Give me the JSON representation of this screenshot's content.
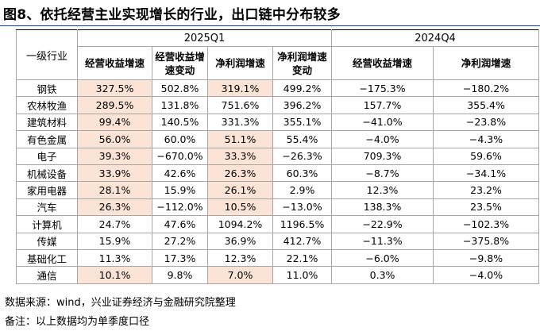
{
  "title": "图8、依托经营主业实现增长的行业，出口链中分布较多",
  "table": {
    "row_header": "一级行业",
    "groups": [
      "2025Q1",
      "2024Q4"
    ],
    "columns": [
      "经营收益增速",
      "经营收益增速变动",
      "净利润增速",
      "净利润增速变动",
      "经营收益增速",
      "净利润增速"
    ],
    "highlight_color": "#fbe3d6",
    "rows": [
      {
        "industry": "钢铁",
        "values": [
          "327.5%",
          "502.8%",
          "319.1%",
          "499.2%",
          "−175.3%",
          "−180.2%"
        ],
        "highlight": [
          true,
          false,
          true,
          false,
          false,
          false
        ]
      },
      {
        "industry": "农林牧渔",
        "values": [
          "289.5%",
          "131.8%",
          "751.6%",
          "396.2%",
          "157.7%",
          "355.4%"
        ],
        "highlight": [
          true,
          false,
          false,
          false,
          false,
          false
        ]
      },
      {
        "industry": "建筑材料",
        "values": [
          "99.4%",
          "140.5%",
          "331.3%",
          "355.1%",
          "−41.0%",
          "−23.8%"
        ],
        "highlight": [
          true,
          false,
          false,
          false,
          false,
          false
        ]
      },
      {
        "industry": "有色金属",
        "values": [
          "56.0%",
          "60.0%",
          "51.1%",
          "55.4%",
          "−4.0%",
          "−4.3%"
        ],
        "highlight": [
          true,
          false,
          true,
          false,
          false,
          false
        ]
      },
      {
        "industry": "电子",
        "values": [
          "39.3%",
          "−670.0%",
          "33.3%",
          "−26.3%",
          "709.3%",
          "59.6%"
        ],
        "highlight": [
          true,
          false,
          true,
          false,
          false,
          false
        ]
      },
      {
        "industry": "机械设备",
        "values": [
          "33.9%",
          "42.6%",
          "26.3%",
          "60.3%",
          "−8.7%",
          "−34.1%"
        ],
        "highlight": [
          true,
          false,
          true,
          false,
          false,
          false
        ]
      },
      {
        "industry": "家用电器",
        "values": [
          "28.1%",
          "15.9%",
          "26.1%",
          "2.9%",
          "12.3%",
          "23.2%"
        ],
        "highlight": [
          true,
          false,
          true,
          false,
          false,
          false
        ]
      },
      {
        "industry": "汽车",
        "values": [
          "26.3%",
          "−112.0%",
          "10.5%",
          "−13.0%",
          "138.3%",
          "23.5%"
        ],
        "highlight": [
          true,
          false,
          true,
          false,
          false,
          false
        ]
      },
      {
        "industry": "计算机",
        "values": [
          "24.7%",
          "47.6%",
          "1094.2%",
          "1196.5%",
          "−22.9%",
          "−102.3%"
        ],
        "highlight": [
          false,
          false,
          false,
          false,
          false,
          false
        ]
      },
      {
        "industry": "传媒",
        "values": [
          "15.9%",
          "27.2%",
          "36.9%",
          "412.7%",
          "−11.3%",
          "−375.8%"
        ],
        "highlight": [
          false,
          false,
          false,
          false,
          false,
          false
        ]
      },
      {
        "industry": "基础化工",
        "values": [
          "11.3%",
          "17.3%",
          "12.3%",
          "22.1%",
          "−6.0%",
          "−9.8%"
        ],
        "highlight": [
          false,
          false,
          false,
          false,
          false,
          false
        ]
      },
      {
        "industry": "通信",
        "values": [
          "10.1%",
          "9.8%",
          "7.0%",
          "11.0%",
          "0.3%",
          "−4.0%"
        ],
        "highlight": [
          true,
          false,
          true,
          false,
          false,
          false
        ]
      }
    ]
  },
  "footnotes": [
    "数据来源：wind，兴业证券经济与金融研究院整理",
    "备注：以上数据均为单季度口径"
  ]
}
